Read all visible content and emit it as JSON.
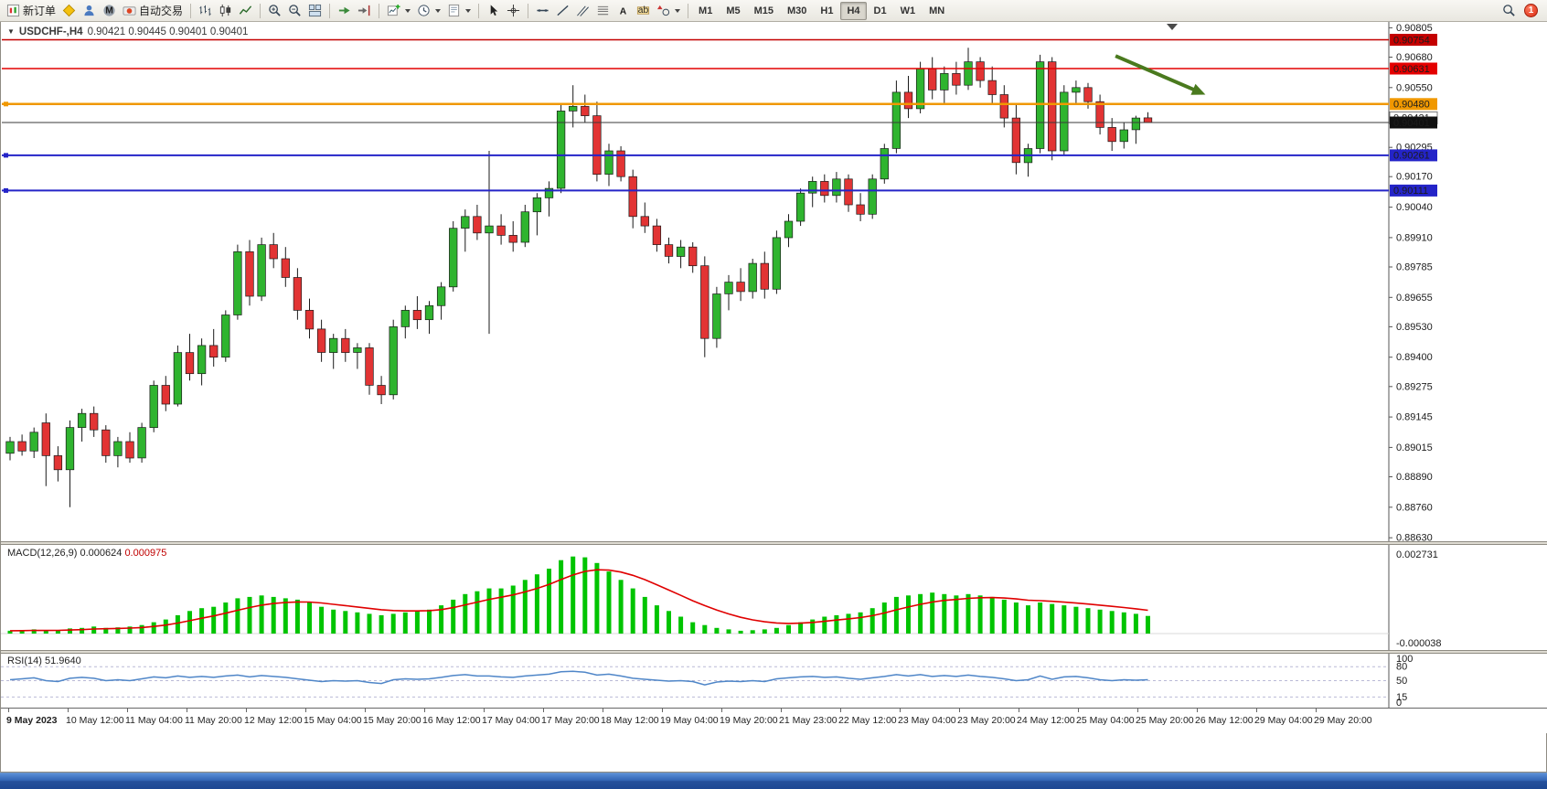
{
  "toolbar": {
    "buttons": [
      {
        "name": "new-order",
        "label": "新订单"
      },
      {
        "name": "metaeditor"
      },
      {
        "name": "community"
      },
      {
        "name": "metaquotes"
      },
      {
        "name": "autotrading",
        "label": "自动交易"
      },
      {
        "sep": true
      },
      {
        "name": "bar-chart"
      },
      {
        "name": "candlestick-chart"
      },
      {
        "name": "line-chart"
      },
      {
        "sep": true
      },
      {
        "name": "zoom-in"
      },
      {
        "name": "zoom-out"
      },
      {
        "name": "tile-windows"
      },
      {
        "sep": true
      },
      {
        "name": "auto-scroll"
      },
      {
        "name": "chart-shift"
      },
      {
        "sep": true
      },
      {
        "name": "new-chart",
        "caret": true
      },
      {
        "name": "periods",
        "caret": true
      },
      {
        "name": "templates",
        "caret": true
      },
      {
        "sep": true
      },
      {
        "name": "cursor"
      },
      {
        "name": "crosshair"
      },
      {
        "sep": true
      },
      {
        "name": "horizontal-line"
      },
      {
        "name": "trendline"
      },
      {
        "name": "equidistant-channel"
      },
      {
        "name": "fibonacci"
      },
      {
        "name": "text"
      },
      {
        "name": "label"
      },
      {
        "name": "shapes",
        "caret": true
      },
      {
        "sep": true
      }
    ],
    "timeframes": [
      {
        "label": "M1"
      },
      {
        "label": "M5"
      },
      {
        "label": "M15"
      },
      {
        "label": "M30"
      },
      {
        "label": "H1"
      },
      {
        "label": "H4",
        "active": true
      },
      {
        "label": "D1"
      },
      {
        "label": "W1"
      },
      {
        "label": "MN"
      }
    ],
    "right_icons": [
      "search",
      "notification"
    ],
    "notification_count": "1"
  },
  "chart_data": [
    {
      "type": "candlestick",
      "symbol": "USDCHF-",
      "timeframe": "H4",
      "header": {
        "symbol_tf": "USDCHF-,H4",
        "ohlc": "0.90421 0.90445 0.90401 0.90401"
      },
      "last_bar_ohlc": [
        0.90421,
        0.90445,
        0.90401,
        0.90401
      ],
      "ylim": [
        0.88615,
        0.9083
      ],
      "grid": false,
      "up_color": "#2fb42f",
      "down_color": "#e23434",
      "y_ticks": [
        "0.90805",
        "0.90680",
        "0.90550",
        "0.90425",
        "0.90295",
        "0.90170",
        "0.90040",
        "0.89910",
        "0.89785",
        "0.89655",
        "0.89530",
        "0.89400",
        "0.89275",
        "0.89145",
        "0.89015",
        "0.88890",
        "0.88760",
        "0.88630"
      ],
      "x_ticks": [
        "9 May 2023",
        "10 May 12:00",
        "11 May 04:00",
        "11 May 20:00",
        "12 May 12:00",
        "15 May 04:00",
        "15 May 20:00",
        "16 May 12:00",
        "17 May 04:00",
        "17 May 20:00",
        "18 May 12:00",
        "19 May 04:00",
        "19 May 20:00",
        "21 May 23:00",
        "22 May 12:00",
        "23 May 04:00",
        "23 May 20:00",
        "24 May 12:00",
        "25 May 04:00",
        "25 May 20:00",
        "26 May 12:00",
        "29 May 04:00",
        "29 May 20:00"
      ],
      "hlines": [
        {
          "price": 0.90754,
          "label": "0.90754",
          "color": "#c40000",
          "width": 1.5,
          "handle": false
        },
        {
          "price": 0.90631,
          "label": "0.90631",
          "color": "#e40000",
          "width": 1.5,
          "handle": false
        },
        {
          "price": 0.9048,
          "label": "0.90480",
          "color": "#f09800",
          "width": 2.5,
          "handle": true
        },
        {
          "price": 0.90261,
          "label": "0.90261",
          "color": "#2424c8",
          "width": 2,
          "handle": true
        },
        {
          "price": 0.90111,
          "label": "0.90111",
          "color": "#2424c8",
          "width": 2,
          "handle": true
        }
      ],
      "bid": {
        "price": 0.90401,
        "label": "0.90401",
        "color": "#3a3a3a",
        "tag_bg": "#101010"
      },
      "ask": {
        "price": 0.90421,
        "label": "0.90421"
      },
      "arrow": {
        "x1_index": 92.3,
        "price1": 0.90685,
        "x2_index": 99.8,
        "price2": 0.9052,
        "color": "#4a7a1e"
      },
      "candles": [
        [
          0.8899,
          0.8906,
          0.8896,
          0.8904
        ],
        [
          0.8904,
          0.8907,
          0.8898,
          0.89
        ],
        [
          0.89,
          0.891,
          0.8897,
          0.8908
        ],
        [
          0.8912,
          0.8916,
          0.8885,
          0.8898
        ],
        [
          0.8898,
          0.8902,
          0.8887,
          0.8892
        ],
        [
          0.8892,
          0.8913,
          0.8876,
          0.891
        ],
        [
          0.891,
          0.8918,
          0.8904,
          0.8916
        ],
        [
          0.8916,
          0.8919,
          0.8906,
          0.8909
        ],
        [
          0.8909,
          0.8911,
          0.8895,
          0.8898
        ],
        [
          0.8898,
          0.8906,
          0.8893,
          0.8904
        ],
        [
          0.8904,
          0.8908,
          0.8895,
          0.8897
        ],
        [
          0.8897,
          0.8912,
          0.8895,
          0.891
        ],
        [
          0.891,
          0.893,
          0.8908,
          0.8928
        ],
        [
          0.8928,
          0.8932,
          0.8917,
          0.892
        ],
        [
          0.892,
          0.8945,
          0.8919,
          0.8942
        ],
        [
          0.8942,
          0.895,
          0.893,
          0.8933
        ],
        [
          0.8933,
          0.8948,
          0.8928,
          0.8945
        ],
        [
          0.8945,
          0.8952,
          0.8936,
          0.894
        ],
        [
          0.894,
          0.896,
          0.8938,
          0.8958
        ],
        [
          0.8958,
          0.8988,
          0.8956,
          0.8985
        ],
        [
          0.8985,
          0.899,
          0.8962,
          0.8966
        ],
        [
          0.8966,
          0.8991,
          0.8964,
          0.8988
        ],
        [
          0.8988,
          0.8993,
          0.8978,
          0.8982
        ],
        [
          0.8982,
          0.8987,
          0.897,
          0.8974
        ],
        [
          0.8974,
          0.8978,
          0.8956,
          0.896
        ],
        [
          0.896,
          0.8965,
          0.8948,
          0.8952
        ],
        [
          0.8952,
          0.8956,
          0.8938,
          0.8942
        ],
        [
          0.8942,
          0.895,
          0.8935,
          0.8948
        ],
        [
          0.8948,
          0.8952,
          0.8938,
          0.8942
        ],
        [
          0.8942,
          0.8946,
          0.8935,
          0.8944
        ],
        [
          0.8944,
          0.8946,
          0.8924,
          0.8928
        ],
        [
          0.8928,
          0.8932,
          0.892,
          0.8924
        ],
        [
          0.8924,
          0.8956,
          0.8922,
          0.8953
        ],
        [
          0.8953,
          0.8962,
          0.8948,
          0.896
        ],
        [
          0.896,
          0.8966,
          0.8952,
          0.8956
        ],
        [
          0.8956,
          0.8964,
          0.895,
          0.8962
        ],
        [
          0.8962,
          0.8972,
          0.8956,
          0.897
        ],
        [
          0.897,
          0.8998,
          0.8968,
          0.8995
        ],
        [
          0.8995,
          0.9003,
          0.8985,
          0.9
        ],
        [
          0.9,
          0.9005,
          0.899,
          0.8993
        ],
        [
          0.8993,
          0.9028,
          0.895,
          0.8996
        ],
        [
          0.8996,
          0.9001,
          0.8988,
          0.8992
        ],
        [
          0.8992,
          0.8998,
          0.8985,
          0.8989
        ],
        [
          0.8989,
          0.9005,
          0.8987,
          0.9002
        ],
        [
          0.9002,
          0.901,
          0.8992,
          0.9008
        ],
        [
          0.9008,
          0.9015,
          0.9,
          0.9012
        ],
        [
          0.9012,
          0.9048,
          0.901,
          0.9045
        ],
        [
          0.9045,
          0.9056,
          0.9038,
          0.9047
        ],
        [
          0.9047,
          0.9052,
          0.904,
          0.9043
        ],
        [
          0.9043,
          0.9049,
          0.9015,
          0.9018
        ],
        [
          0.9018,
          0.9031,
          0.9013,
          0.9028
        ],
        [
          0.9028,
          0.903,
          0.9015,
          0.9017
        ],
        [
          0.9017,
          0.902,
          0.8995,
          0.9
        ],
        [
          0.9,
          0.9006,
          0.8993,
          0.8996
        ],
        [
          0.8996,
          0.8999,
          0.8985,
          0.8988
        ],
        [
          0.8988,
          0.8991,
          0.898,
          0.8983
        ],
        [
          0.8983,
          0.899,
          0.8978,
          0.8987
        ],
        [
          0.8987,
          0.8989,
          0.8976,
          0.8979
        ],
        [
          0.8979,
          0.8983,
          0.894,
          0.8948
        ],
        [
          0.8948,
          0.897,
          0.8944,
          0.8967
        ],
        [
          0.8967,
          0.8975,
          0.896,
          0.8972
        ],
        [
          0.8972,
          0.8978,
          0.8964,
          0.8968
        ],
        [
          0.8968,
          0.8982,
          0.8965,
          0.898
        ],
        [
          0.898,
          0.8985,
          0.8965,
          0.8969
        ],
        [
          0.8969,
          0.8994,
          0.8967,
          0.8991
        ],
        [
          0.8991,
          0.9001,
          0.8987,
          0.8998
        ],
        [
          0.8998,
          0.9012,
          0.8996,
          0.901
        ],
        [
          0.901,
          0.9017,
          0.9004,
          0.9015
        ],
        [
          0.9015,
          0.9018,
          0.9006,
          0.9009
        ],
        [
          0.9009,
          0.9019,
          0.9006,
          0.9016
        ],
        [
          0.9016,
          0.9018,
          0.9002,
          0.9005
        ],
        [
          0.9005,
          0.901,
          0.8998,
          0.9001
        ],
        [
          0.9001,
          0.9018,
          0.8999,
          0.9016
        ],
        [
          0.9016,
          0.9031,
          0.9014,
          0.9029
        ],
        [
          0.9029,
          0.9058,
          0.9027,
          0.9053
        ],
        [
          0.9053,
          0.906,
          0.9042,
          0.9046
        ],
        [
          0.9046,
          0.9066,
          0.9044,
          0.9063
        ],
        [
          0.9063,
          0.9068,
          0.905,
          0.9054
        ],
        [
          0.9054,
          0.9064,
          0.9048,
          0.9061
        ],
        [
          0.9061,
          0.9066,
          0.9052,
          0.9056
        ],
        [
          0.9056,
          0.9072,
          0.9054,
          0.9066
        ],
        [
          0.9066,
          0.9068,
          0.9055,
          0.9058
        ],
        [
          0.9058,
          0.9064,
          0.9048,
          0.9052
        ],
        [
          0.9052,
          0.9056,
          0.9038,
          0.9042
        ],
        [
          0.9042,
          0.9048,
          0.9018,
          0.9023
        ],
        [
          0.9023,
          0.9031,
          0.9017,
          0.9029
        ],
        [
          0.9029,
          0.9069,
          0.9027,
          0.9066
        ],
        [
          0.9066,
          0.9068,
          0.9024,
          0.9028
        ],
        [
          0.9028,
          0.9056,
          0.9026,
          0.9053
        ],
        [
          0.9053,
          0.9058,
          0.9048,
          0.9055
        ],
        [
          0.9055,
          0.9057,
          0.9046,
          0.9049
        ],
        [
          0.9049,
          0.9052,
          0.9035,
          0.9038
        ],
        [
          0.9038,
          0.9042,
          0.9028,
          0.9032
        ],
        [
          0.9032,
          0.904,
          0.9029,
          0.9037
        ],
        [
          0.9037,
          0.9043,
          0.9031,
          0.9042
        ],
        [
          0.90421,
          0.90445,
          0.90401,
          0.90401
        ]
      ]
    },
    {
      "type": "bar",
      "name": "MACD",
      "params": "MACD(12,26,9)",
      "value_main": "0.000624",
      "value_signal": "0.000975",
      "bar_color": "#00c400",
      "signal_color": "#e00000",
      "axis_max_label": "0.002731",
      "axis_min_label": "-0.000038",
      "vmax": 0.00285,
      "values": [
        0.0001,
        0.00012,
        0.00015,
        0.0001,
        0.00012,
        0.00018,
        0.0002,
        0.00025,
        0.0002,
        0.00022,
        0.00025,
        0.0003,
        0.0004,
        0.0005,
        0.00065,
        0.0008,
        0.0009,
        0.00095,
        0.0011,
        0.00125,
        0.0013,
        0.00135,
        0.0013,
        0.00125,
        0.0012,
        0.0011,
        0.00095,
        0.00085,
        0.0008,
        0.00075,
        0.0007,
        0.00065,
        0.0007,
        0.00075,
        0.0008,
        0.00085,
        0.001,
        0.0012,
        0.0014,
        0.0015,
        0.0016,
        0.0016,
        0.0017,
        0.0019,
        0.0021,
        0.0023,
        0.0026,
        0.00273,
        0.0027,
        0.0025,
        0.0022,
        0.0019,
        0.0016,
        0.0013,
        0.001,
        0.0008,
        0.0006,
        0.0004,
        0.0003,
        0.0002,
        0.00015,
        0.0001,
        0.00012,
        0.00015,
        0.0002,
        0.0003,
        0.0004,
        0.0005,
        0.0006,
        0.00065,
        0.0007,
        0.00075,
        0.0009,
        0.0011,
        0.0013,
        0.00135,
        0.0014,
        0.00145,
        0.0014,
        0.00135,
        0.0014,
        0.00135,
        0.0013,
        0.0012,
        0.0011,
        0.001,
        0.0011,
        0.00105,
        0.001,
        0.00095,
        0.0009,
        0.00085,
        0.0008,
        0.00075,
        0.0007,
        0.000624
      ]
    },
    {
      "type": "line",
      "name": "RSI",
      "params": "RSI(14)",
      "value": "51.9640",
      "color": "#4f86c8",
      "range": [
        0,
        100
      ],
      "levels": [
        80,
        50,
        15
      ],
      "axis_labels": [
        "100",
        "80",
        "50",
        "15",
        "0"
      ],
      "values": [
        52,
        54,
        56,
        50,
        48,
        55,
        57,
        55,
        50,
        52,
        50,
        54,
        58,
        56,
        60,
        57,
        59,
        57,
        60,
        62,
        58,
        61,
        59,
        57,
        54,
        51,
        48,
        50,
        49,
        50,
        46,
        44,
        52,
        54,
        53,
        54,
        57,
        61,
        63,
        60,
        60,
        58,
        57,
        60,
        62,
        64,
        69,
        70,
        68,
        62,
        64,
        60,
        55,
        53,
        51,
        49,
        50,
        48,
        41,
        47,
        49,
        48,
        50,
        48,
        54,
        56,
        58,
        59,
        57,
        58,
        55,
        53,
        56,
        59,
        63,
        60,
        63,
        59,
        61,
        59,
        62,
        59,
        57,
        54,
        50,
        52,
        60,
        53,
        58,
        59,
        56,
        52,
        50,
        52,
        51,
        51.964
      ]
    }
  ]
}
